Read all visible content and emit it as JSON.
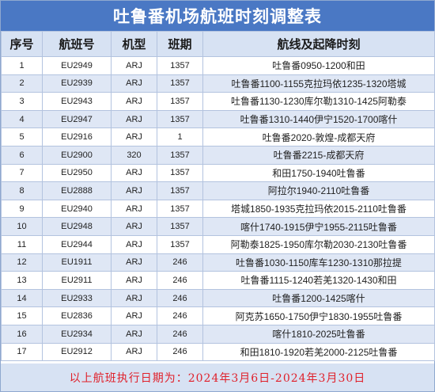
{
  "title": "吐鲁番机场航班时刻调整表",
  "columns": [
    "序号",
    "航班号",
    "机型",
    "班期",
    "航线及起降时刻"
  ],
  "rows": [
    {
      "no": "1",
      "flight": "EU2949",
      "aircraft": "ARJ",
      "days": "1357",
      "route": "吐鲁番0950-1200和田"
    },
    {
      "no": "2",
      "flight": "EU2939",
      "aircraft": "ARJ",
      "days": "1357",
      "route": "吐鲁番1100-1155克拉玛依1235-1320塔城"
    },
    {
      "no": "3",
      "flight": "EU2943",
      "aircraft": "ARJ",
      "days": "1357",
      "route": "吐鲁番1130-1230库尔勒1310-1425阿勒泰"
    },
    {
      "no": "4",
      "flight": "EU2947",
      "aircraft": "ARJ",
      "days": "1357",
      "route": "吐鲁番1310-1440伊宁1520-1700喀什"
    },
    {
      "no": "5",
      "flight": "EU2916",
      "aircraft": "ARJ",
      "days": "1",
      "route": "吐鲁番2020-敦煌-成都天府"
    },
    {
      "no": "6",
      "flight": "EU2900",
      "aircraft": "320",
      "days": "1357",
      "route": "吐鲁番2215-成都天府"
    },
    {
      "no": "7",
      "flight": "EU2950",
      "aircraft": "ARJ",
      "days": "1357",
      "route": "和田1750-1940吐鲁番"
    },
    {
      "no": "8",
      "flight": "EU2888",
      "aircraft": "ARJ",
      "days": "1357",
      "route": "阿拉尔1940-2110吐鲁番"
    },
    {
      "no": "9",
      "flight": "EU2940",
      "aircraft": "ARJ",
      "days": "1357",
      "route": "塔城1850-1935克拉玛依2015-2110吐鲁番"
    },
    {
      "no": "10",
      "flight": "EU2948",
      "aircraft": "ARJ",
      "days": "1357",
      "route": "喀什1740-1915伊宁1955-2115吐鲁番"
    },
    {
      "no": "11",
      "flight": "EU2944",
      "aircraft": "ARJ",
      "days": "1357",
      "route": "阿勒泰1825-1950库尔勒2030-2130吐鲁番"
    },
    {
      "no": "12",
      "flight": "EU1911",
      "aircraft": "ARJ",
      "days": "246",
      "route": "吐鲁番1030-1150库车1230-1310那拉提"
    },
    {
      "no": "13",
      "flight": "EU2911",
      "aircraft": "ARJ",
      "days": "246",
      "route": "吐鲁番1115-1240若羌1320-1430和田"
    },
    {
      "no": "14",
      "flight": "EU2933",
      "aircraft": "ARJ",
      "days": "246",
      "route": "吐鲁番1200-1425喀什"
    },
    {
      "no": "15",
      "flight": "EU2836",
      "aircraft": "ARJ",
      "days": "246",
      "route": "阿克苏1650-1750伊宁1830-1955吐鲁番"
    },
    {
      "no": "16",
      "flight": "EU2934",
      "aircraft": "ARJ",
      "days": "246",
      "route": "喀什1810-2025吐鲁番"
    },
    {
      "no": "17",
      "flight": "EU2912",
      "aircraft": "ARJ",
      "days": "246",
      "route": "和田1810-1920若羌2000-2125吐鲁番"
    }
  ],
  "footer": "以上航班执行日期为：2024年3月6日-2024年3月30日",
  "colors": {
    "title_bg": "#4a78c4",
    "header_bg": "#d7e2f3",
    "row_alt_bg": "#dfe7f5",
    "footer_text": "#e0202a"
  }
}
